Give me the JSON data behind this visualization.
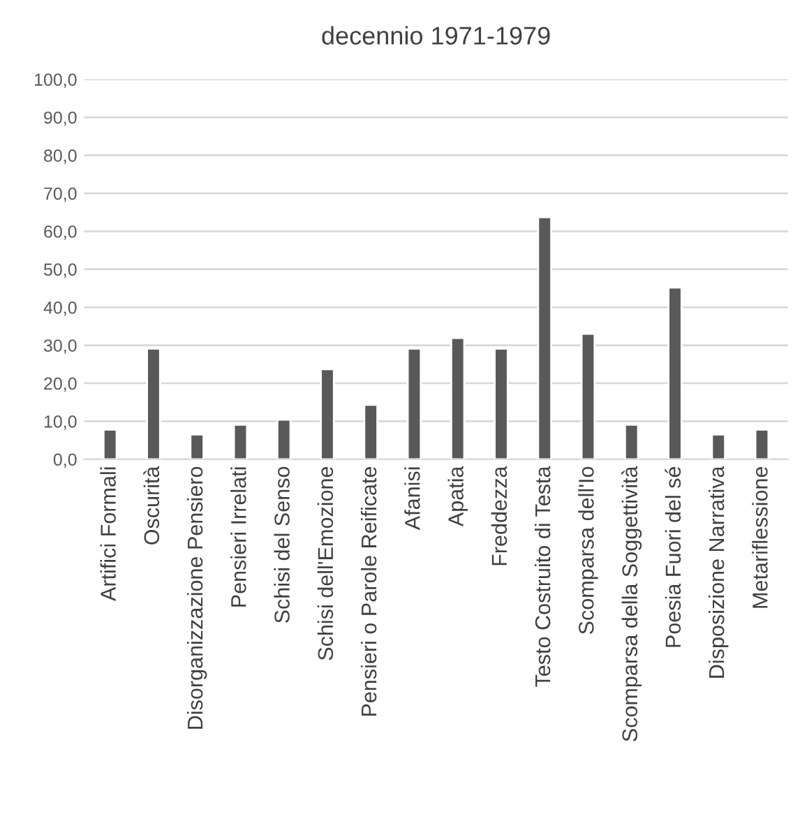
{
  "chart_data": {
    "type": "bar",
    "title": "decennio 1971-1979",
    "categories": [
      "Artifici Formali",
      "Oscurità",
      "Disorganizzazione Pensiero",
      "Pensieri Irrelati",
      "Schisi del Senso",
      "Schisi dell'Emozione",
      "Pensieri o Parole Reificate",
      "Afanisi",
      "Apatia",
      "Freddezza",
      "Testo Costruito di Testa",
      "Scomparsa dell'Io",
      "Scomparsa della Soggettività",
      "Poesia Fuori del sé",
      "Disposizione Narrativa",
      "Metariflessione"
    ],
    "values": [
      7.8,
      29.1,
      6.5,
      9.1,
      10.4,
      23.7,
      14.3,
      29.1,
      31.9,
      29.1,
      63.7,
      33.0,
      9.1,
      45.2,
      6.5,
      7.8
    ],
    "color": "#595959",
    "ylim": [
      0,
      100
    ],
    "yticks": [
      {
        "value": 0,
        "label": "0,0"
      },
      {
        "value": 10,
        "label": "10,0"
      },
      {
        "value": 20,
        "label": "20,0"
      },
      {
        "value": 30,
        "label": "30,0"
      },
      {
        "value": 40,
        "label": "40,0"
      },
      {
        "value": 50,
        "label": "50,0"
      },
      {
        "value": 60,
        "label": "60,0"
      },
      {
        "value": 70,
        "label": "70,0"
      },
      {
        "value": 80,
        "label": "80,0"
      },
      {
        "value": 90,
        "label": "90,0"
      },
      {
        "value": 100,
        "label": "100,0"
      }
    ],
    "grid": "y"
  }
}
